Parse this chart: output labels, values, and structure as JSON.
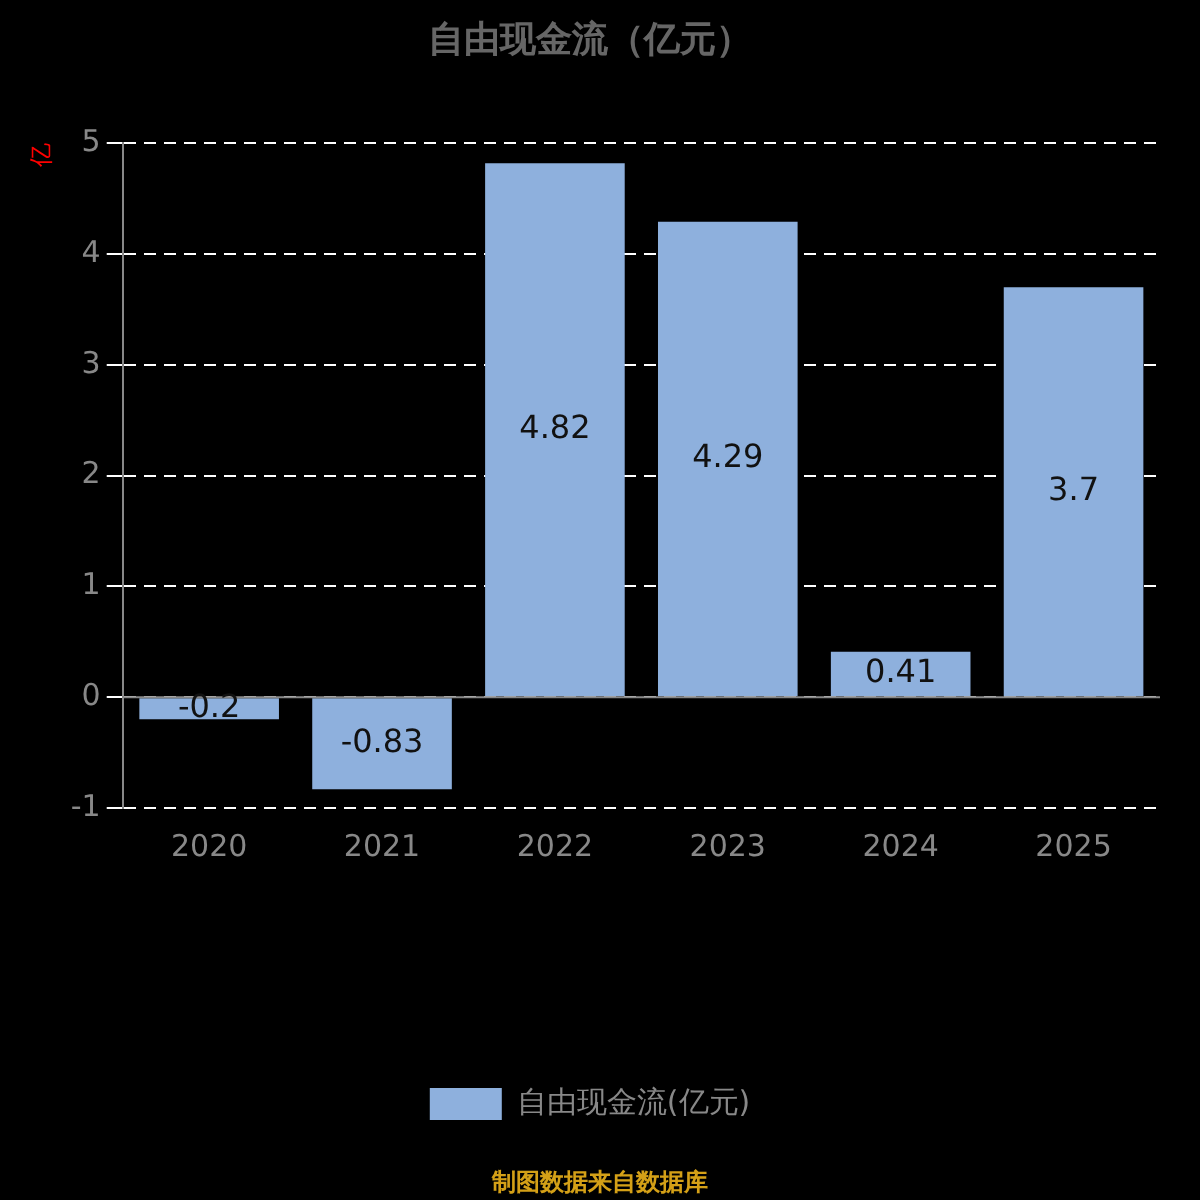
{
  "chart_data": {
    "type": "bar",
    "title": "自由现金流（亿元）",
    "ylabel": "亿",
    "categories": [
      "2020",
      "2021",
      "2022",
      "2023",
      "2024",
      "2025"
    ],
    "series": [
      {
        "name": "自由现金流(亿元)",
        "color": "#8eb0dd",
        "values": [
          -0.2,
          -0.83,
          4.82,
          4.29,
          0.41,
          3.7
        ]
      }
    ],
    "ylim": [
      -1,
      5
    ],
    "yticks": [
      -1,
      0,
      1,
      2,
      3,
      4,
      5
    ],
    "grid": "y",
    "legend": "bottom",
    "data_labels": true,
    "annotations": [
      "制图数据来自数据库"
    ]
  }
}
